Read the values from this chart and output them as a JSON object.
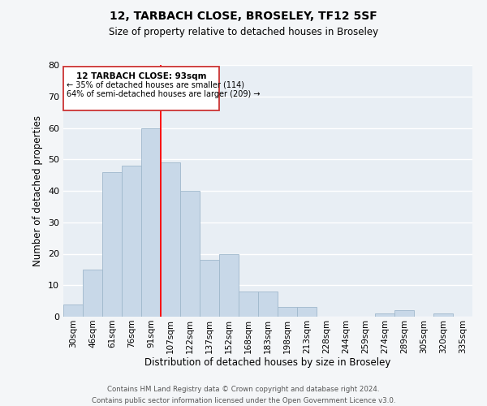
{
  "title": "12, TARBACH CLOSE, BROSELEY, TF12 5SF",
  "subtitle": "Size of property relative to detached houses in Broseley",
  "xlabel": "Distribution of detached houses by size in Broseley",
  "ylabel": "Number of detached properties",
  "bar_color": "#c8d8e8",
  "bar_edge_color": "#a0b8cc",
  "background_color": "#e8eef4",
  "grid_color": "#ffffff",
  "bin_labels": [
    "30sqm",
    "46sqm",
    "61sqm",
    "76sqm",
    "91sqm",
    "107sqm",
    "122sqm",
    "137sqm",
    "152sqm",
    "168sqm",
    "183sqm",
    "198sqm",
    "213sqm",
    "228sqm",
    "244sqm",
    "259sqm",
    "274sqm",
    "289sqm",
    "305sqm",
    "320sqm",
    "335sqm"
  ],
  "bar_heights": [
    4,
    15,
    46,
    48,
    60,
    49,
    40,
    18,
    20,
    8,
    8,
    3,
    3,
    0,
    0,
    0,
    1,
    2,
    0,
    1,
    0
  ],
  "marker_bin_index": 4,
  "annotation_line1": "12 TARBACH CLOSE: 93sqm",
  "annotation_line2": "← 35% of detached houses are smaller (114)",
  "annotation_line3": "64% of semi-detached houses are larger (209) →",
  "ylim": [
    0,
    80
  ],
  "yticks": [
    0,
    10,
    20,
    30,
    40,
    50,
    60,
    70,
    80
  ],
  "footer_line1": "Contains HM Land Registry data © Crown copyright and database right 2024.",
  "footer_line2": "Contains public sector information licensed under the Open Government Licence v3.0."
}
